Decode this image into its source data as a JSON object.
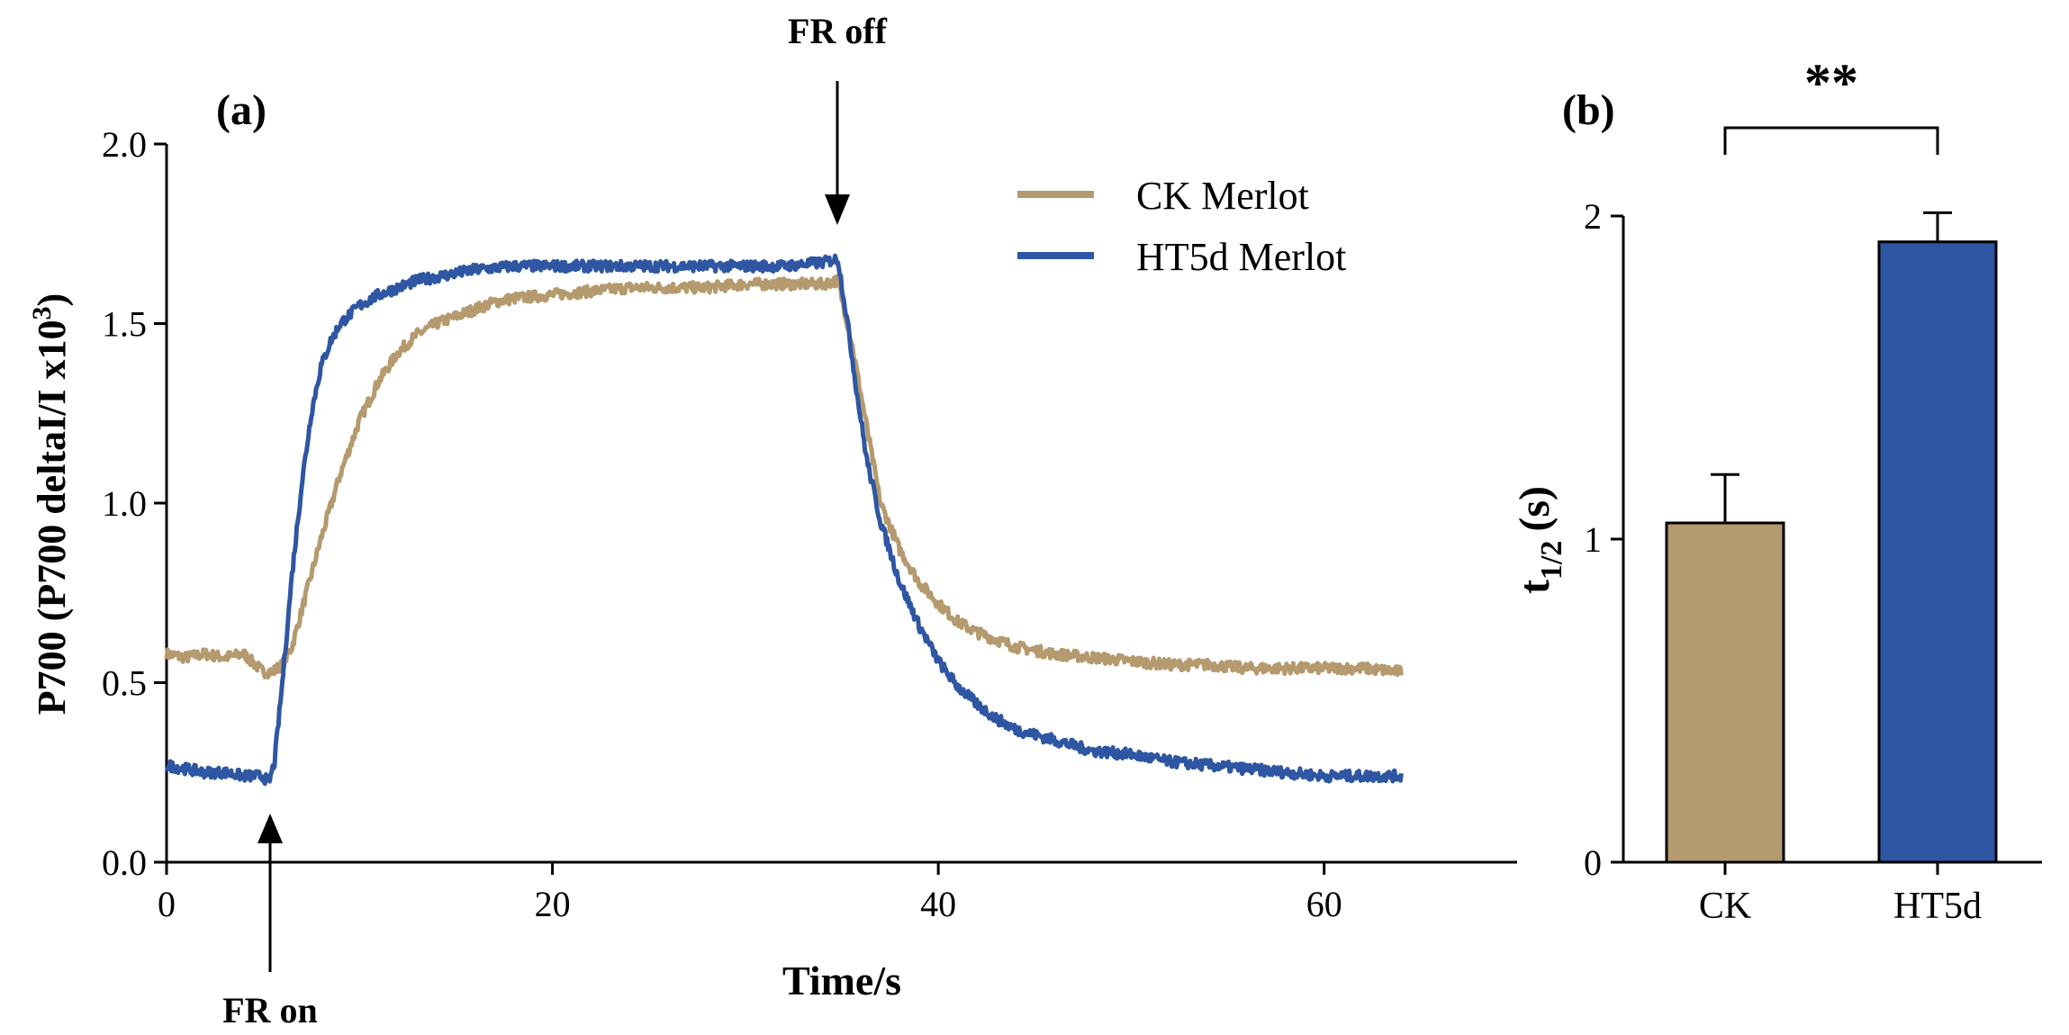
{
  "colors": {
    "ck": "#b49a6e",
    "ht5d": "#2e56a3",
    "axis": "#000000"
  },
  "chart_data": [
    {
      "type": "line",
      "panel_label": "(a)",
      "xlabel": "Time/s",
      "ylabel_main": "P700 (P700 deltaI/I x10",
      "ylabel_sup": "3",
      "ylabel_end": ")",
      "xlim": [
        0,
        70
      ],
      "ylim": [
        0,
        2.0
      ],
      "xticks": [
        0,
        20,
        40,
        60
      ],
      "yticks": [
        0.0,
        0.5,
        1.0,
        1.5,
        2.0
      ],
      "ytick_labels": [
        "0.0",
        "0.5",
        "1.0",
        "1.5",
        "2.0"
      ],
      "xtick_labels": [
        "0",
        "20",
        "40",
        "60"
      ],
      "annotations": [
        {
          "text": "FR on",
          "x": 5.3,
          "direction": "up"
        },
        {
          "text": "FR off",
          "x": 34.8,
          "direction": "down"
        }
      ],
      "series": [
        {
          "name": "CK Merlot",
          "color_key": "ck",
          "x": [
            0,
            1,
            2,
            3,
            4,
            5,
            5.5,
            6,
            6.5,
            7,
            8,
            9,
            10,
            11,
            12,
            13,
            14,
            15,
            16,
            17,
            18,
            20,
            22,
            24,
            26,
            28,
            30,
            32,
            34,
            34.8,
            35.5,
            36,
            36.5,
            37,
            38,
            39,
            40,
            41,
            42,
            43,
            44,
            46,
            48,
            50,
            52,
            54,
            56,
            58,
            60,
            62,
            64
          ],
          "y": [
            0.58,
            0.57,
            0.58,
            0.57,
            0.58,
            0.53,
            0.53,
            0.55,
            0.6,
            0.7,
            0.9,
            1.08,
            1.23,
            1.34,
            1.42,
            1.47,
            1.5,
            1.52,
            1.54,
            1.56,
            1.57,
            1.58,
            1.59,
            1.6,
            1.6,
            1.6,
            1.61,
            1.61,
            1.61,
            1.62,
            1.45,
            1.3,
            1.15,
            1.0,
            0.87,
            0.78,
            0.72,
            0.67,
            0.64,
            0.62,
            0.6,
            0.58,
            0.57,
            0.56,
            0.55,
            0.55,
            0.54,
            0.54,
            0.54,
            0.54,
            0.53
          ]
        },
        {
          "name": "HT5d Merlot",
          "color_key": "ht5d",
          "x": [
            0,
            1,
            2,
            3,
            4,
            5,
            5.3,
            5.6,
            6,
            6.5,
            7,
            7.5,
            8,
            8.5,
            9,
            10,
            11,
            12,
            13,
            14,
            15,
            16,
            18,
            20,
            22,
            24,
            26,
            28,
            30,
            32,
            34,
            34.8,
            35.3,
            35.8,
            36.3,
            37,
            38,
            39,
            40,
            41,
            42,
            43,
            44,
            46,
            48,
            50,
            52,
            54,
            56,
            58,
            60,
            62,
            64
          ],
          "y": [
            0.27,
            0.26,
            0.25,
            0.25,
            0.24,
            0.24,
            0.22,
            0.28,
            0.5,
            0.8,
            1.05,
            1.25,
            1.38,
            1.45,
            1.5,
            1.55,
            1.58,
            1.6,
            1.62,
            1.63,
            1.64,
            1.65,
            1.66,
            1.66,
            1.66,
            1.66,
            1.66,
            1.66,
            1.66,
            1.66,
            1.67,
            1.68,
            1.5,
            1.3,
            1.12,
            0.95,
            0.78,
            0.66,
            0.56,
            0.49,
            0.44,
            0.4,
            0.37,
            0.34,
            0.31,
            0.3,
            0.28,
            0.27,
            0.26,
            0.25,
            0.24,
            0.24,
            0.24
          ]
        }
      ]
    },
    {
      "type": "bar",
      "panel_label": "(b)",
      "categories": [
        "CK",
        "HT5d"
      ],
      "values": [
        1.05,
        1.92
      ],
      "errors": [
        0.15,
        0.09
      ],
      "color_keys": [
        "ck",
        "ht5d"
      ],
      "ylabel_main": "t",
      "ylabel_sub": "1/2",
      "ylabel_end": "(s)",
      "ylim": [
        0,
        2
      ],
      "yticks": [
        0,
        1,
        2
      ],
      "ytick_labels": [
        "0",
        "1",
        "2"
      ],
      "significance": "**"
    }
  ]
}
